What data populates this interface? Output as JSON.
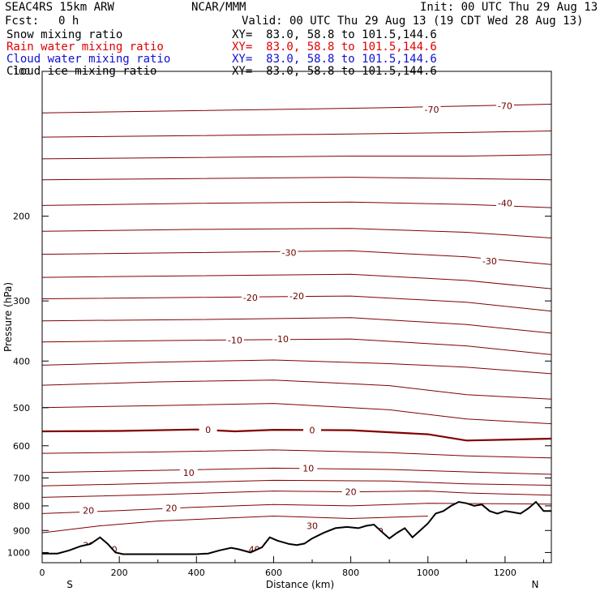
{
  "header": {
    "model": "SEAC4RS 15km ARW",
    "center": "NCAR/MMM",
    "init": "Init: 00 UTC Thu 29 Aug 13",
    "fcst_label": "Fcst:",
    "fcst_value": "0 h",
    "valid": "Valid: 00 UTC Thu 29 Aug 13 (19 CDT Wed 28 Aug 13)",
    "fields": [
      {
        "name": "Snow mixing ratio",
        "xy": "XY=  83.0, 58.8 to 101.5,144.6",
        "color": "#000000"
      },
      {
        "name": "Rain water mixing ratio",
        "xy": "XY=  83.0, 58.8 to 101.5,144.6",
        "color": "#e00000"
      },
      {
        "name": "Cloud water mixing ratio",
        "xy": "XY=  83.0, 58.8 to 101.5,144.6",
        "color": "#1010d0"
      },
      {
        "name": "Cloud ice mixing ratio",
        "xy": "XY=  83.0, 58.8 to 101.5,144.6",
        "color": "#000000"
      }
    ]
  },
  "chart_data": {
    "type": "line",
    "xlabel": "Distance (km)",
    "ylabel": "Pressure (hPa)",
    "xlim": [
      0,
      1320
    ],
    "ylim": [
      1050,
      100
    ],
    "y_scale": "log",
    "x_ticks": [
      0,
      200,
      400,
      600,
      800,
      1000,
      1200
    ],
    "y_ticks": [
      100,
      200,
      300,
      400,
      500,
      600,
      700,
      800,
      900,
      1000
    ],
    "x_end_labels": {
      "left": "S",
      "right": "N"
    },
    "contour_color": "#800000",
    "terrain_color": "#000000",
    "contours": [
      {
        "level": -70,
        "x": [
          0,
          300,
          600,
          900,
          1100,
          1320
        ],
        "p": [
          122,
          121,
          120,
          119,
          118,
          117
        ]
      },
      {
        "level": -60,
        "x": [
          0,
          400,
          800,
          1100,
          1320
        ],
        "p": [
          137,
          136,
          135,
          134,
          133
        ]
      },
      {
        "level": -50,
        "x": [
          0,
          400,
          800,
          1100,
          1320
        ],
        "p": [
          152,
          151,
          150,
          150,
          149
        ]
      },
      {
        "level": -45,
        "x": [
          0,
          400,
          800,
          1100,
          1320
        ],
        "p": [
          168,
          167,
          166,
          167,
          168
        ]
      },
      {
        "level": -40,
        "x": [
          0,
          400,
          800,
          1100,
          1320
        ],
        "p": [
          190,
          188,
          187,
          189,
          192
        ]
      },
      {
        "level": -35,
        "x": [
          0,
          400,
          800,
          1100,
          1320
        ],
        "p": [
          215,
          213,
          212,
          216,
          222
        ]
      },
      {
        "level": -30,
        "x": [
          0,
          400,
          800,
          1100,
          1320
        ],
        "p": [
          240,
          238,
          236,
          243,
          252
        ]
      },
      {
        "level": -25,
        "x": [
          0,
          400,
          800,
          1100,
          1320
        ],
        "p": [
          268,
          266,
          264,
          272,
          283
        ]
      },
      {
        "level": -20,
        "x": [
          0,
          400,
          800,
          1100,
          1320
        ],
        "p": [
          297,
          295,
          293,
          302,
          315
        ]
      },
      {
        "level": -15,
        "x": [
          0,
          400,
          800,
          1100,
          1320
        ],
        "p": [
          330,
          328,
          325,
          336,
          350
        ]
      },
      {
        "level": -10,
        "x": [
          0,
          400,
          800,
          1100,
          1320
        ],
        "p": [
          365,
          362,
          360,
          372,
          388
        ]
      },
      {
        "level": -5,
        "x": [
          0,
          300,
          600,
          900,
          1100,
          1320
        ],
        "p": [
          408,
          402,
          398,
          405,
          412,
          425
        ]
      },
      {
        "level": 0,
        "x": [
          0,
          300,
          600,
          900,
          1100,
          1320
        ],
        "p": [
          449,
          442,
          438,
          450,
          470,
          480
        ]
      },
      {
        "level": 5,
        "x": [
          0,
          300,
          600,
          900,
          1100,
          1320
        ],
        "p": [
          500,
          495,
          490,
          505,
          528,
          540
        ]
      },
      {
        "level": 10,
        "x": [
          0,
          200,
          400,
          500,
          600,
          800,
          1000,
          1100,
          1320
        ],
        "p": [
          560,
          559,
          555,
          560,
          556,
          557,
          568,
          585,
          580
        ]
      },
      {
        "level": 15,
        "x": [
          0,
          300,
          600,
          900,
          1100,
          1320
        ],
        "p": [
          622,
          618,
          612,
          620,
          630,
          636
        ]
      },
      {
        "level": 20,
        "x": [
          0,
          300,
          600,
          900,
          1100,
          1320
        ],
        "p": [
          682,
          675,
          668,
          672,
          680,
          688
        ]
      },
      {
        "level": 25,
        "x": [
          0,
          300,
          600,
          900,
          1100,
          1320
        ],
        "p": [
          727,
          718,
          708,
          710,
          720,
          725
        ]
      },
      {
        "level": 30,
        "x": [
          0,
          300,
          600,
          800,
          1000,
          1100,
          1320
        ],
        "p": [
          768,
          758,
          745,
          748,
          745,
          752,
          760
        ]
      },
      {
        "level": 35,
        "x": [
          0,
          200,
          400,
          600,
          800,
          1000,
          1320
        ],
        "p": [
          830,
          818,
          805,
          795,
          800,
          790,
          793
        ]
      },
      {
        "level": 40,
        "x": [
          0,
          150,
          300,
          450,
          600,
          800,
          1000
        ],
        "p": [
          910,
          880,
          860,
          850,
          840,
          850,
          840
        ]
      }
    ],
    "contour_labels": [
      {
        "text": "-70",
        "x": 1010,
        "p": 120
      },
      {
        "text": "-70",
        "x": 1200,
        "p": 118
      },
      {
        "text": "-40",
        "x": 1200,
        "p": 188
      },
      {
        "text": "-30",
        "x": 640,
        "p": 238
      },
      {
        "text": "-30",
        "x": 1160,
        "p": 248
      },
      {
        "text": "-20",
        "x": 540,
        "p": 295
      },
      {
        "text": "-20",
        "x": 660,
        "p": 293
      },
      {
        "text": "-10",
        "x": 500,
        "p": 362
      },
      {
        "text": "-10",
        "x": 620,
        "p": 360
      },
      {
        "text": "0",
        "x": 430,
        "p": 556
      },
      {
        "text": "0",
        "x": 700,
        "p": 557
      },
      {
        "text": "10",
        "x": 380,
        "p": 682
      },
      {
        "text": "10",
        "x": 690,
        "p": 668
      },
      {
        "text": "20",
        "x": 120,
        "p": 818
      },
      {
        "text": "20",
        "x": 335,
        "p": 808
      },
      {
        "text": "20",
        "x": 800,
        "p": 748
      },
      {
        "text": "30",
        "x": 700,
        "p": 880
      },
      {
        "text": "30",
        "x": 870,
        "p": 902
      },
      {
        "text": "30",
        "x": 120,
        "p": 966
      },
      {
        "text": "30",
        "x": 180,
        "p": 985
      },
      {
        "text": "40",
        "x": 550,
        "p": 985
      }
    ],
    "terrain": {
      "x": [
        0,
        40,
        70,
        100,
        125,
        150,
        170,
        190,
        210,
        250,
        300,
        350,
        400,
        430,
        460,
        490,
        510,
        540,
        570,
        590,
        610,
        640,
        660,
        680,
        700,
        730,
        760,
        790,
        820,
        840,
        860,
        880,
        900,
        920,
        940,
        960,
        980,
        1000,
        1020,
        1040,
        1060,
        1080,
        1100,
        1120,
        1140,
        1160,
        1180,
        1200,
        1220,
        1240,
        1260,
        1280,
        1300,
        1320
      ],
      "p": [
        1005,
        1005,
        990,
        970,
        960,
        930,
        960,
        1000,
        1008,
        1008,
        1008,
        1008,
        1008,
        1005,
        990,
        978,
        985,
        1000,
        975,
        930,
        945,
        960,
        965,
        958,
        935,
        910,
        890,
        885,
        890,
        880,
        875,
        905,
        935,
        910,
        890,
        930,
        900,
        870,
        830,
        820,
        800,
        785,
        790,
        800,
        795,
        820,
        830,
        820,
        825,
        830,
        810,
        785,
        820,
        820
      ]
    }
  }
}
